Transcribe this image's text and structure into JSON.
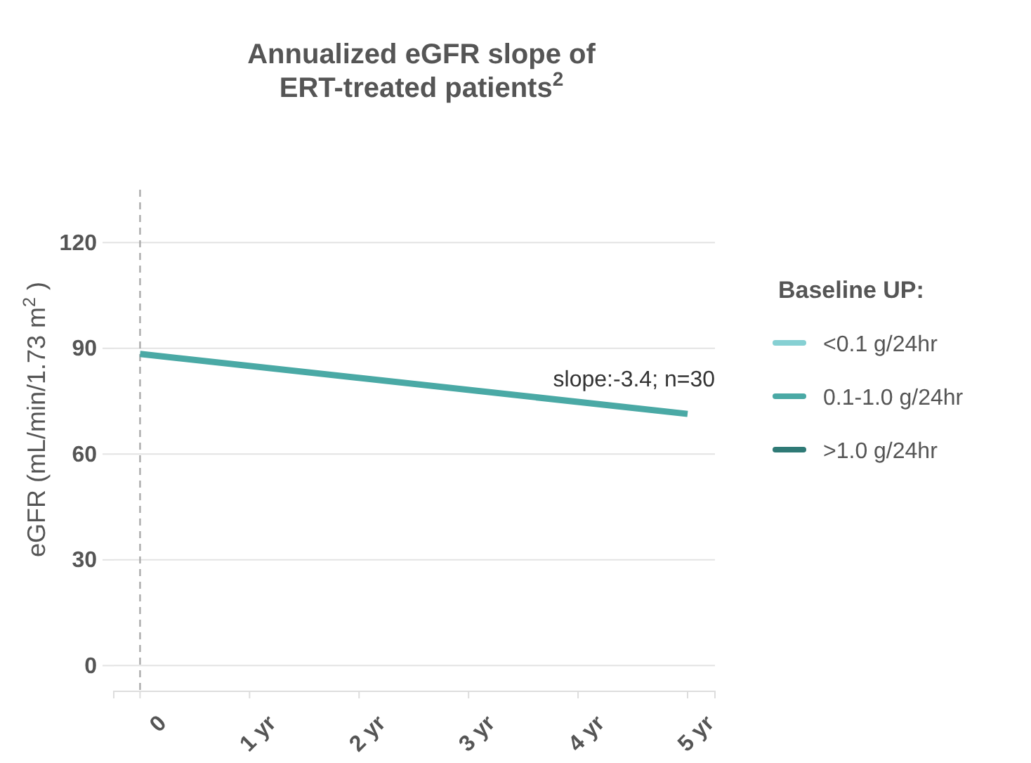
{
  "chart_data": {
    "type": "line",
    "title": "Annualized eGFR slope of ERT-treated patients$^{2}$",
    "ylabel": "eGFR (mL/min/1.73 m$^{2}$ )",
    "legend_title": "Baseline UP:",
    "x": [
      0,
      5
    ],
    "series": [
      {
        "name": "<0.1 g/24hr",
        "color": "#86d0d3",
        "values": [
          null,
          null
        ]
      },
      {
        "name": "0.1-1.0 g/24hr",
        "color": "#4aa9a5",
        "values": [
          88.4,
          71.4
        ]
      },
      {
        "name": ">1.0 g/24hr",
        "color": "#2f7a76",
        "values": [
          null,
          null
        ]
      }
    ],
    "xlim": [
      -0.24,
      5.25
    ],
    "xticks": [
      0,
      {
        "value": 1,
        "label": "1 yr"
      },
      {
        "value": 2,
        "label": "2 yr"
      },
      {
        "value": 3,
        "label": "3 yr"
      },
      {
        "value": 4,
        "label": "4 yr"
      },
      {
        "value": 5,
        "label": "5 yr"
      }
    ],
    "ylim": [
      -7.3,
      135
    ],
    "yticks": [
      0,
      30,
      60,
      90,
      120
    ],
    "ref_lines": [
      {
        "axis": "x",
        "value": 0,
        "color": "#aaaaaa",
        "line_style": "dashed"
      }
    ],
    "annotations": [
      "slope:-3.4; n=30"
    ],
    "grid": "y",
    "legend": "right",
    "marker": "none",
    "line_style": "solid"
  }
}
